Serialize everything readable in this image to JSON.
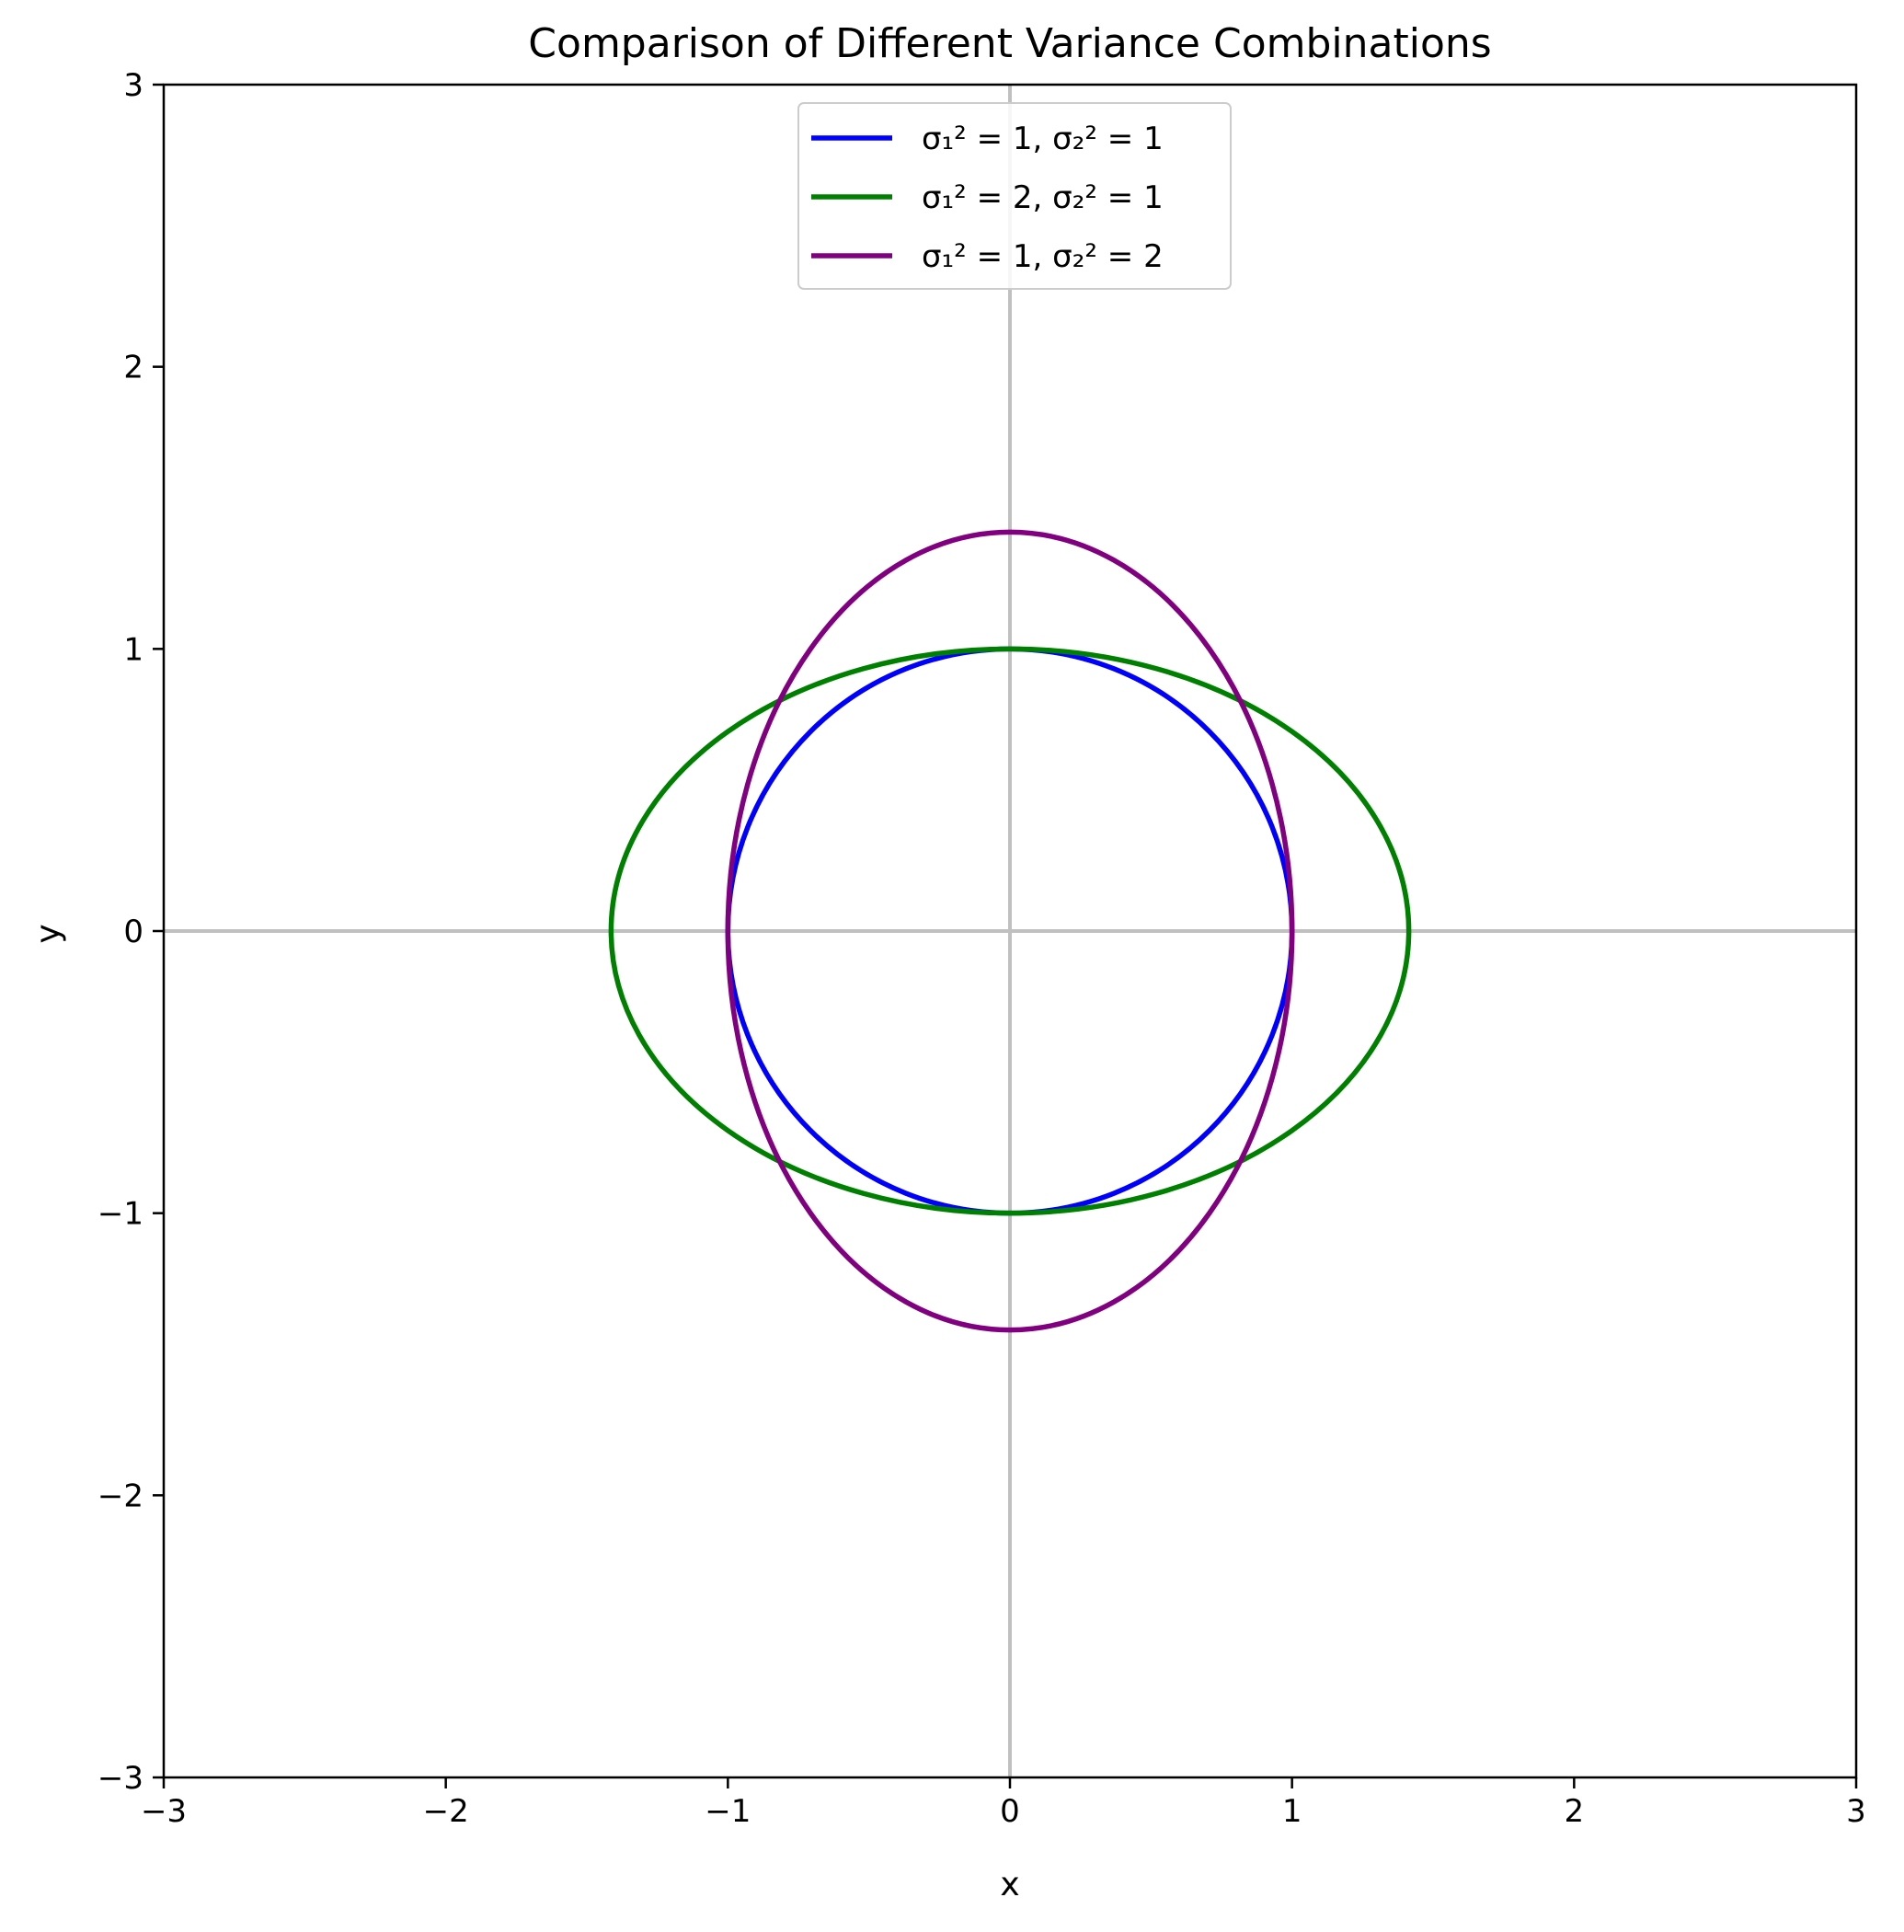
{
  "chart_data": {
    "type": "line",
    "title": "Comparison of Different Variance Combinations",
    "xlabel": "x",
    "ylabel": "y",
    "xlim": [
      -3,
      3
    ],
    "ylim": [
      -3,
      3
    ],
    "xticks": [
      -3,
      -2,
      -1,
      0,
      1,
      2,
      3
    ],
    "yticks": [
      -3,
      -2,
      -1,
      0,
      1,
      2,
      3
    ],
    "x_tick_labels": [
      "−3",
      "−2",
      "−1",
      "0",
      "1",
      "2",
      "3"
    ],
    "y_tick_labels": [
      "−3",
      "−2",
      "−1",
      "0",
      "1",
      "2",
      "3"
    ],
    "grid": false,
    "reference_lines": {
      "x": 0,
      "y": 0,
      "color": "#c0c0c0"
    },
    "legend_position": "upper center",
    "series": [
      {
        "name": "σ₁² = 1, σ₂² = 1",
        "shape": "ellipse",
        "center": [
          0,
          0
        ],
        "x_radius": 1,
        "y_radius": 1,
        "color": "#0000ff"
      },
      {
        "name": "σ₁² = 2, σ₂² = 1",
        "shape": "ellipse",
        "center": [
          0,
          0
        ],
        "x_radius": 1.414,
        "y_radius": 1,
        "color": "#008000"
      },
      {
        "name": "σ₁² = 1, σ₂² = 2",
        "shape": "ellipse",
        "center": [
          0,
          0
        ],
        "x_radius": 1,
        "y_radius": 1.414,
        "color": "#800080"
      }
    ]
  }
}
